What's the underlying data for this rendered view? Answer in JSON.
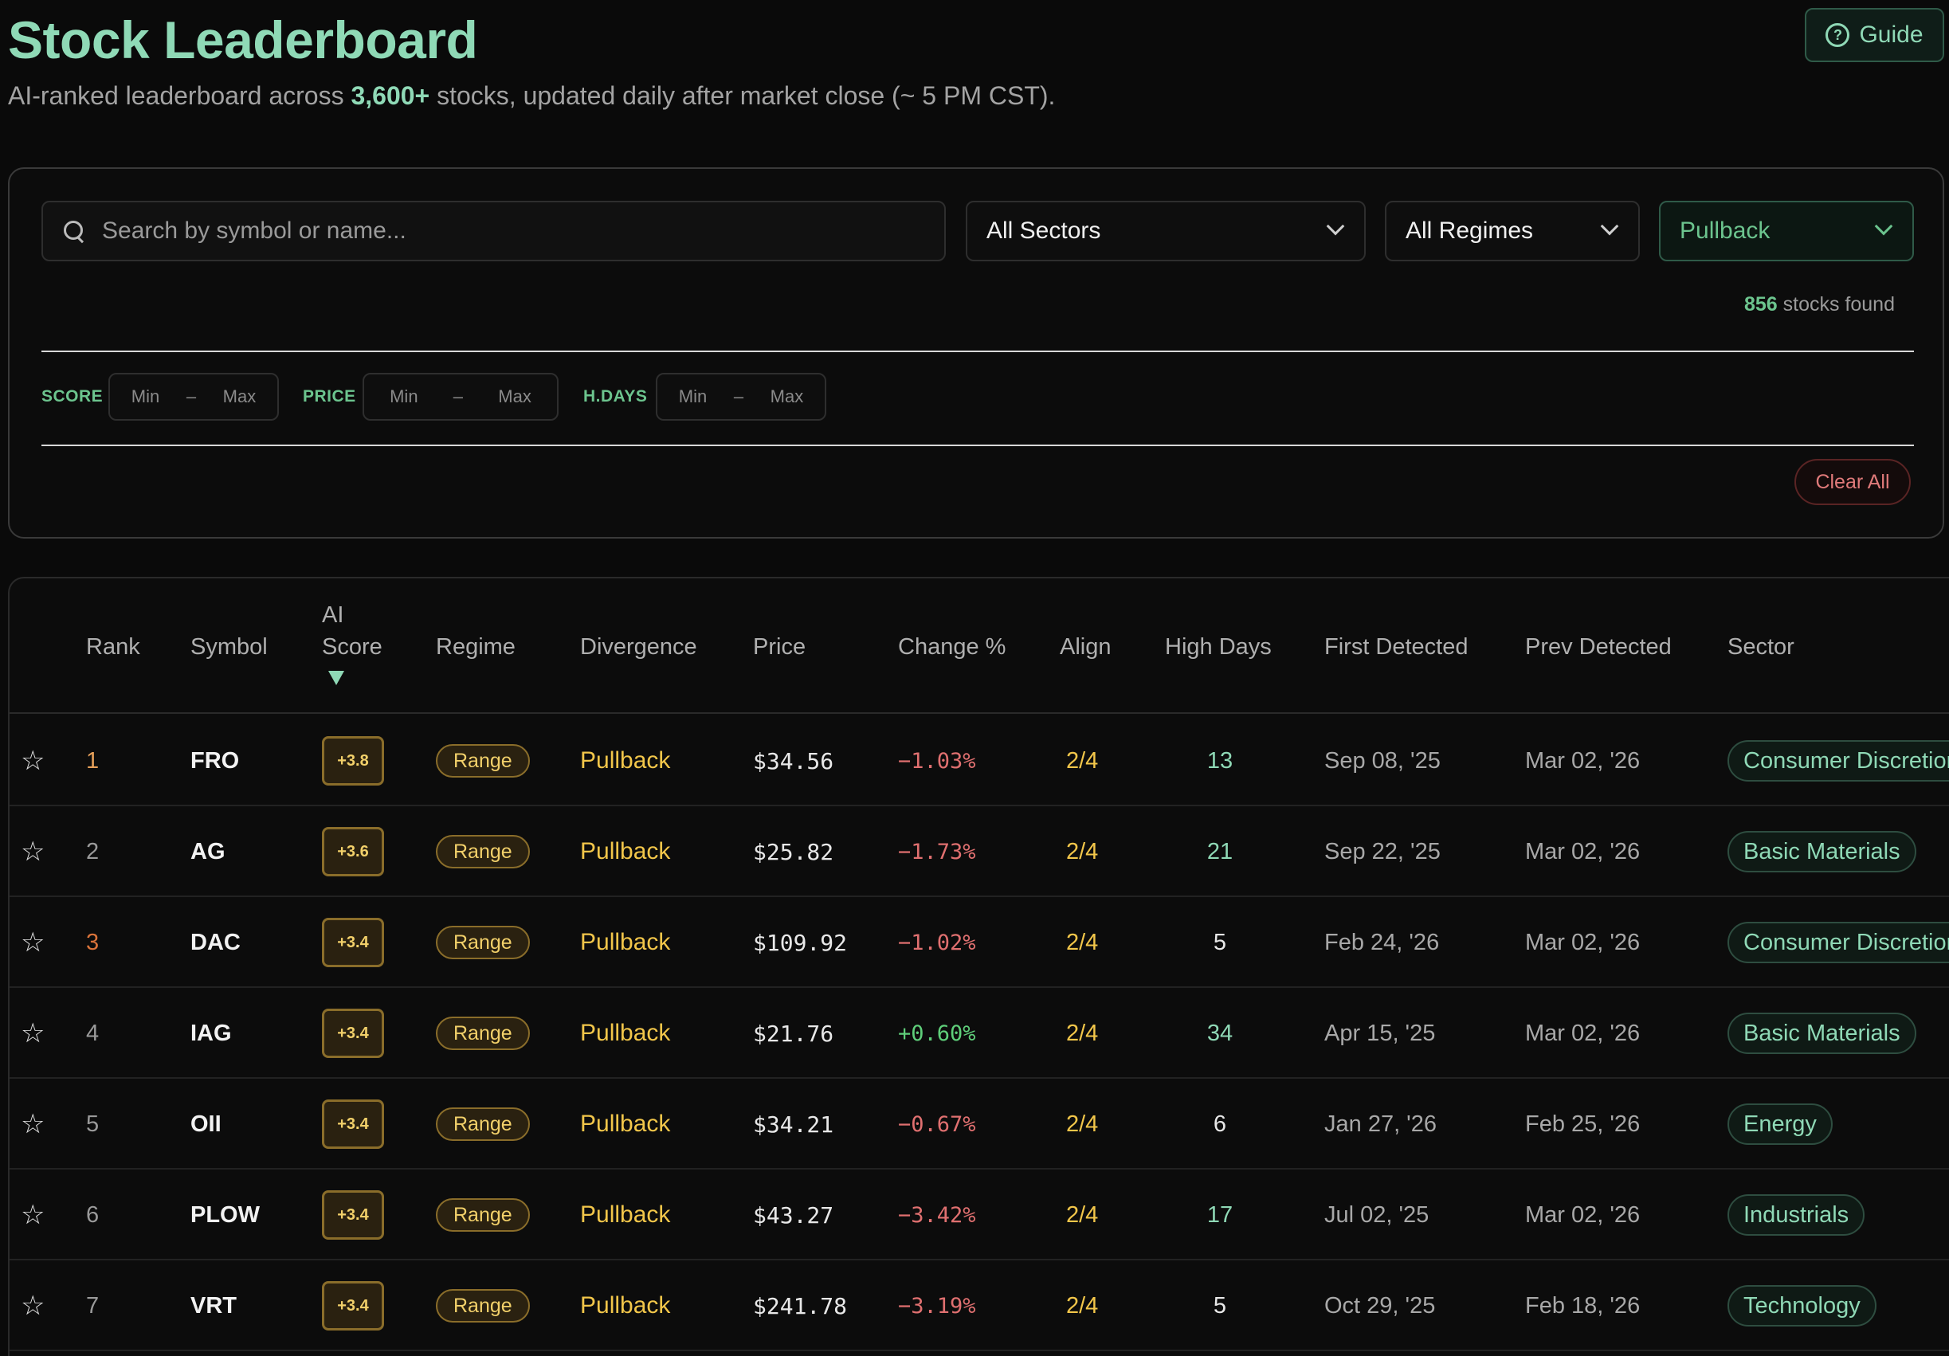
{
  "header": {
    "title": "Stock Leaderboard",
    "subtitle_pre": "AI-ranked leaderboard across ",
    "subtitle_hl": "3,600+",
    "subtitle_post": " stocks, updated daily after market close (~ 5 PM CST).",
    "guide_label": "Guide"
  },
  "filters": {
    "search_placeholder": "Search by symbol or name...",
    "sector": "All Sectors",
    "regime": "All Regimes",
    "divergence": "Pullback",
    "found_count": "856",
    "found_label": " stocks found",
    "ranges": [
      {
        "label": "SCORE",
        "min": "Min",
        "max": "Max"
      },
      {
        "label": "PRICE",
        "min": "Min",
        "max": "Max"
      },
      {
        "label": "H.DAYS",
        "min": "Min",
        "max": "Max"
      }
    ],
    "range_sep": "–",
    "clear_label": "Clear All"
  },
  "table": {
    "columns": [
      "Rank",
      "Symbol",
      "AI",
      "Score",
      "Regime",
      "Divergence",
      "Price",
      "Change %",
      "Align",
      "High Days",
      "First Detected",
      "Prev Detected",
      "Sector"
    ],
    "rows": [
      {
        "rank": "1",
        "symbol": "FRO",
        "score": "+3.8",
        "regime": "Range",
        "divergence": "Pullback",
        "price": "$34.56",
        "change": "−1.03%",
        "align": "2/4",
        "high_days": "13",
        "first": "Sep 08, '25",
        "prev": "Mar 02, '26",
        "sector": "Consumer Discretionary"
      },
      {
        "rank": "2",
        "symbol": "AG",
        "score": "+3.6",
        "regime": "Range",
        "divergence": "Pullback",
        "price": "$25.82",
        "change": "−1.73%",
        "align": "2/4",
        "high_days": "21",
        "first": "Sep 22, '25",
        "prev": "Mar 02, '26",
        "sector": "Basic Materials"
      },
      {
        "rank": "3",
        "symbol": "DAC",
        "score": "+3.4",
        "regime": "Range",
        "divergence": "Pullback",
        "price": "$109.92",
        "change": "−1.02%",
        "align": "2/4",
        "high_days": "5",
        "first": "Feb 24, '26",
        "prev": "Mar 02, '26",
        "sector": "Consumer Discretionary"
      },
      {
        "rank": "4",
        "symbol": "IAG",
        "score": "+3.4",
        "regime": "Range",
        "divergence": "Pullback",
        "price": "$21.76",
        "change": "+0.60%",
        "align": "2/4",
        "high_days": "34",
        "first": "Apr 15, '25",
        "prev": "Mar 02, '26",
        "sector": "Basic Materials"
      },
      {
        "rank": "5",
        "symbol": "OII",
        "score": "+3.4",
        "regime": "Range",
        "divergence": "Pullback",
        "price": "$34.21",
        "change": "−0.67%",
        "align": "2/4",
        "high_days": "6",
        "first": "Jan 27, '26",
        "prev": "Feb 25, '26",
        "sector": "Energy"
      },
      {
        "rank": "6",
        "symbol": "PLOW",
        "score": "+3.4",
        "regime": "Range",
        "divergence": "Pullback",
        "price": "$43.27",
        "change": "−3.42%",
        "align": "2/4",
        "high_days": "17",
        "first": "Jul 02, '25",
        "prev": "Mar 02, '26",
        "sector": "Industrials"
      },
      {
        "rank": "7",
        "symbol": "VRT",
        "score": "+3.4",
        "regime": "Range",
        "divergence": "Pullback",
        "price": "$241.78",
        "change": "−3.19%",
        "align": "2/4",
        "high_days": "5",
        "first": "Oct 29, '25",
        "prev": "Feb 18, '26",
        "sector": "Technology"
      }
    ]
  },
  "colors": {
    "accent": "#8fd9b6",
    "positive": "#5fcf7a",
    "negative": "#e07070",
    "warning": "#f2c64a"
  }
}
